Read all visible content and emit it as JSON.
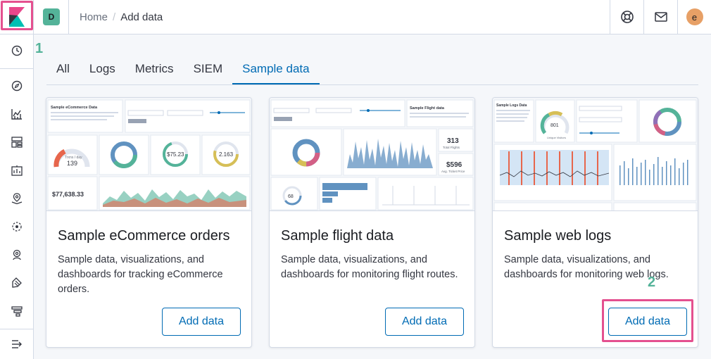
{
  "header": {
    "space_initial": "D",
    "breadcrumb_home": "Home",
    "breadcrumb_separator": "/",
    "breadcrumb_current": "Add data",
    "user_initial": "e",
    "icons": [
      "kibana-logo",
      "help-icon",
      "mail-icon"
    ]
  },
  "callouts": {
    "step1": "1",
    "step2": "2"
  },
  "sidebar": {
    "items": [
      "recently-viewed",
      "discover",
      "visualize",
      "dashboard",
      "canvas",
      "maps",
      "machine-learning",
      "infrastructure",
      "logs",
      "apm",
      "collapse"
    ]
  },
  "tabs": [
    {
      "label": "All"
    },
    {
      "label": "Logs"
    },
    {
      "label": "Metrics"
    },
    {
      "label": "SIEM"
    },
    {
      "label": "Sample data",
      "active": true
    }
  ],
  "cards": [
    {
      "title": "Sample eCommerce orders",
      "description": "Sample data, visualizations, and dashboards for tracking eCommerce orders.",
      "button": "Add data",
      "thumb": {
        "title": "Sample eCommerce Data",
        "metric1": "139",
        "metric1_label": "Trxns / day",
        "metric2": "$75.23",
        "metric3": "2.163",
        "revenue": "$77,638.33"
      }
    },
    {
      "title": "Sample flight data",
      "description": "Sample data, visualizations, and dashboards for monitoring flight routes.",
      "button": "Add data",
      "thumb": {
        "title": "Sample Flight data",
        "flights": "313",
        "flights_label": "Total Flights",
        "price": "$596",
        "price_label": "Avg. Ticket Price",
        "delays": "68"
      }
    },
    {
      "title": "Sample web logs",
      "description": "Sample data, visualizations, and dashboards for monitoring web logs.",
      "button": "Add data",
      "thumb": {
        "title": "Sample Logs Data",
        "visitors": "801",
        "visitors_label": "Unique Visitors"
      }
    }
  ],
  "colors": {
    "accent": "#006bb4",
    "highlight": "#e4508f",
    "callout": "#54b399"
  }
}
